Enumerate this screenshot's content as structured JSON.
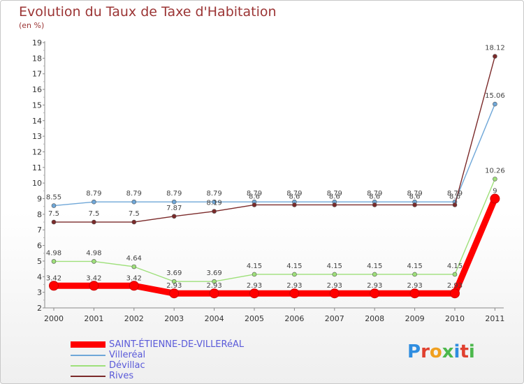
{
  "title": "Evolution du Taux de Taxe d'Habitation",
  "unit": "(en %)",
  "logo_text": "Proxiti",
  "chart_data": {
    "type": "line",
    "title": "Evolution du Taux de Taxe d'Habitation",
    "ylabel": "(en %)",
    "xlabel": "",
    "x": [
      "2000",
      "2001",
      "2002",
      "2003",
      "2004",
      "2005",
      "2006",
      "2007",
      "2008",
      "2009",
      "2010",
      "2011"
    ],
    "ylim": [
      2,
      19
    ],
    "yticks": [
      "2",
      "3",
      "4",
      "5",
      "6",
      "7",
      "8",
      "9",
      "10",
      "11",
      "12",
      "13",
      "14",
      "15",
      "16",
      "17",
      "18",
      "19"
    ],
    "grid": false,
    "legend_position": "bottom-left",
    "series": [
      {
        "name": "SAINT-ÉTIENNE-DE-VILLERéAL",
        "color": "#ff0000",
        "values": [
          3.42,
          3.42,
          3.42,
          2.93,
          2.93,
          2.93,
          2.93,
          2.93,
          2.93,
          2.93,
          2.93,
          9
        ],
        "labels": [
          "3.42",
          "3.42",
          "3.42",
          "2.93",
          "2.93",
          "2.93",
          "2.93",
          "2.93",
          "2.93",
          "2.93",
          "2.93",
          "9"
        ]
      },
      {
        "name": "Villeréal",
        "color": "#6fa7d8",
        "values": [
          8.55,
          8.79,
          8.79,
          8.79,
          8.79,
          8.79,
          8.79,
          8.79,
          8.79,
          8.79,
          8.79,
          15.06
        ],
        "labels": [
          "8.55",
          "8.79",
          "8.79",
          "8.79",
          "8.79",
          "8.79",
          "8.79",
          "8.79",
          "8.79",
          "8.79",
          "8.79",
          "15.06"
        ]
      },
      {
        "name": "Dévillac",
        "color": "#9ee07a",
        "values": [
          4.98,
          4.98,
          4.64,
          3.69,
          3.69,
          4.15,
          4.15,
          4.15,
          4.15,
          4.15,
          4.15,
          10.26
        ],
        "labels": [
          "4.98",
          "4.98",
          "4.64",
          "3.69",
          "3.69",
          "4.15",
          "4.15",
          "4.15",
          "4.15",
          "4.15",
          "4.15",
          "10.26"
        ]
      },
      {
        "name": "Rives",
        "color": "#7b2a2a",
        "values": [
          7.5,
          7.5,
          7.5,
          7.87,
          8.19,
          8.6,
          8.6,
          8.6,
          8.6,
          8.6,
          8.6,
          18.12
        ],
        "labels": [
          "7.5",
          "7.5",
          "7.5",
          "7.87",
          "8.19",
          "8.6",
          "8.6",
          "8.6",
          "8.6",
          "8.6",
          "8.6",
          "18.12"
        ]
      }
    ]
  }
}
